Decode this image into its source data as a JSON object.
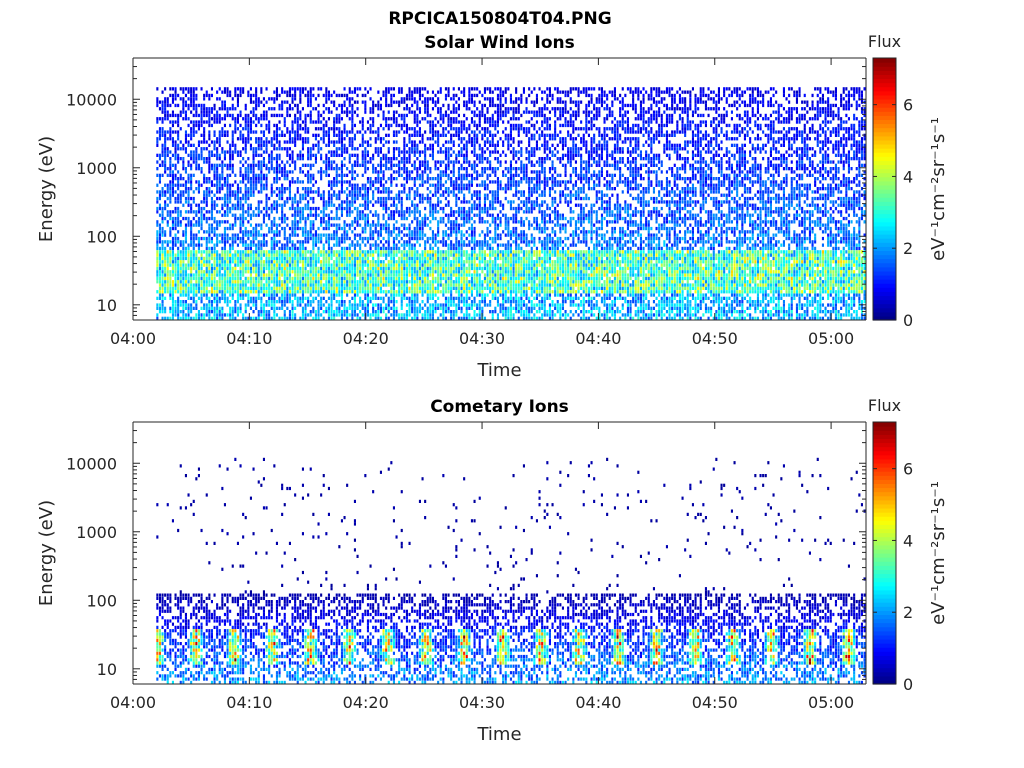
{
  "figure_title": "RPCICA150804T04.PNG",
  "colormap": "jet",
  "chart_data": [
    {
      "type": "heatmap",
      "title": "Solar Wind Ions",
      "xlabel": "Time",
      "ylabel": "Energy (eV)",
      "y_scale": "log",
      "xlim": [
        "04:00",
        "05:03"
      ],
      "ylim": [
        6,
        40000
      ],
      "x_ticks": [
        "04:00",
        "04:10",
        "04:20",
        "04:30",
        "04:40",
        "04:50",
        "05:00"
      ],
      "y_ticks": [
        "10",
        "100",
        "1000",
        "10000"
      ],
      "y_tick_values": [
        10,
        100,
        1000,
        10000
      ],
      "data_start": "04:02",
      "data_end": "05:03",
      "colorbar": {
        "title": "Flux",
        "label": "eV⁻¹cm⁻²sr⁻¹s⁻¹",
        "range": [
          0,
          7.3
        ],
        "ticks": [
          "0",
          "2",
          "4",
          "6"
        ],
        "tick_values": [
          0,
          2,
          4,
          6
        ]
      },
      "profile": {
        "energy_range_eV": [
          6,
          15000
        ],
        "flux_high_energy": 0.8,
        "flux_low_energy": 2.5,
        "peak_band_eV": [
          15,
          60
        ],
        "peak_flux": 4.0,
        "fill_high_energy": 0.5,
        "fill_low_energy": 0.7
      }
    },
    {
      "type": "heatmap",
      "title": "Cometary Ions",
      "xlabel": "Time",
      "ylabel": "Energy (eV)",
      "y_scale": "log",
      "xlim": [
        "04:00",
        "05:03"
      ],
      "ylim": [
        6,
        40000
      ],
      "x_ticks": [
        "04:00",
        "04:10",
        "04:20",
        "04:30",
        "04:40",
        "04:50",
        "05:00"
      ],
      "y_ticks": [
        "10",
        "100",
        "1000",
        "10000"
      ],
      "y_tick_values": [
        10,
        100,
        1000,
        10000
      ],
      "data_start": "04:02",
      "data_end": "05:03",
      "colorbar": {
        "title": "Flux",
        "label": "eV⁻¹cm⁻²sr⁻¹s⁻¹",
        "range": [
          0,
          7.3
        ],
        "ticks": [
          "0",
          "2",
          "4",
          "6"
        ],
        "tick_values": [
          0,
          2,
          4,
          6
        ]
      },
      "profile": {
        "energy_range_eV": [
          6,
          12000
        ],
        "cutoff_eV": 130,
        "flux_high_energy": 0.3,
        "flux_low_energy": 2.2,
        "peak_band_eV": [
          12,
          40
        ],
        "peak_flux": 6.3,
        "peak_period_min": 3.3,
        "fill_high_energy": 0.03,
        "fill_low_energy": 0.55
      }
    }
  ]
}
